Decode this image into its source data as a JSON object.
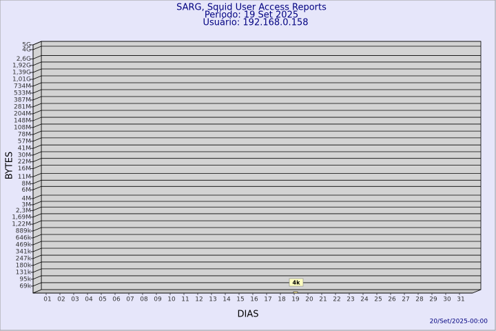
{
  "chart_data": {
    "type": "bar",
    "title": "SARG, Squid User Access Reports",
    "subtitle": "Período: 19 Set 2025",
    "user": "Usuário: 192.168.0.158",
    "y_label": "BYTES",
    "x_label": "DIAS",
    "footer": "20/Set/2025-00:00",
    "categories": [
      "01",
      "02",
      "03",
      "04",
      "05",
      "06",
      "07",
      "08",
      "09",
      "10",
      "11",
      "12",
      "13",
      "14",
      "15",
      "16",
      "17",
      "18",
      "19",
      "20",
      "21",
      "22",
      "23",
      "24",
      "25",
      "26",
      "27",
      "28",
      "29",
      "30",
      "31"
    ],
    "values": [
      null,
      null,
      null,
      null,
      null,
      null,
      null,
      null,
      null,
      null,
      null,
      null,
      null,
      null,
      null,
      null,
      null,
      null,
      4000,
      null,
      null,
      null,
      null,
      null,
      null,
      null,
      null,
      null,
      null,
      null,
      null
    ],
    "value_labels": [
      null,
      null,
      null,
      null,
      null,
      null,
      null,
      null,
      null,
      null,
      null,
      null,
      null,
      null,
      null,
      null,
      null,
      null,
      "4k",
      null,
      null,
      null,
      null,
      null,
      null,
      null,
      null,
      null,
      null,
      null,
      null
    ],
    "color": "#f7e89a",
    "log_scale": true,
    "grid": true,
    "ylim": [
      50000,
      5000000000
    ],
    "yticks": [
      {
        "value": 5000000000,
        "label": "5G"
      },
      {
        "value": 4000000000,
        "label": "4G"
      },
      {
        "value": 2600000000,
        "label": "2,6G"
      },
      {
        "value": 1920000000,
        "label": "1,92G"
      },
      {
        "value": 1390000000,
        "label": "1,39G"
      },
      {
        "value": 1010000000,
        "label": "1,01G"
      },
      {
        "value": 734000000,
        "label": "734M"
      },
      {
        "value": 533000000,
        "label": "533M"
      },
      {
        "value": 387000000,
        "label": "387M"
      },
      {
        "value": 281000000,
        "label": "281M"
      },
      {
        "value": 204000000,
        "label": "204M"
      },
      {
        "value": 148000000,
        "label": "148M"
      },
      {
        "value": 108000000,
        "label": "108M"
      },
      {
        "value": 78000000,
        "label": "78M"
      },
      {
        "value": 57000000,
        "label": "57M"
      },
      {
        "value": 41000000,
        "label": "41M"
      },
      {
        "value": 30000000,
        "label": "30M"
      },
      {
        "value": 22000000,
        "label": "22M"
      },
      {
        "value": 16000000,
        "label": "16M"
      },
      {
        "value": 11000000,
        "label": "11M"
      },
      {
        "value": 8000000,
        "label": "8M"
      },
      {
        "value": 6000000,
        "label": "6M"
      },
      {
        "value": 4000000,
        "label": "4M"
      },
      {
        "value": 3000000,
        "label": "3M"
      },
      {
        "value": 2300000,
        "label": "2,3M"
      },
      {
        "value": 1690000,
        "label": "1,69M"
      },
      {
        "value": 1220000,
        "label": "1,22M"
      },
      {
        "value": 889000,
        "label": "889k"
      },
      {
        "value": 646000,
        "label": "646k"
      },
      {
        "value": 469000,
        "label": "469k"
      },
      {
        "value": 341000,
        "label": "341k"
      },
      {
        "value": 247000,
        "label": "247k"
      },
      {
        "value": 180000,
        "label": "180k"
      },
      {
        "value": 131000,
        "label": "131k"
      },
      {
        "value": 95000,
        "label": "95k"
      },
      {
        "value": 69000,
        "label": "69k"
      }
    ]
  }
}
